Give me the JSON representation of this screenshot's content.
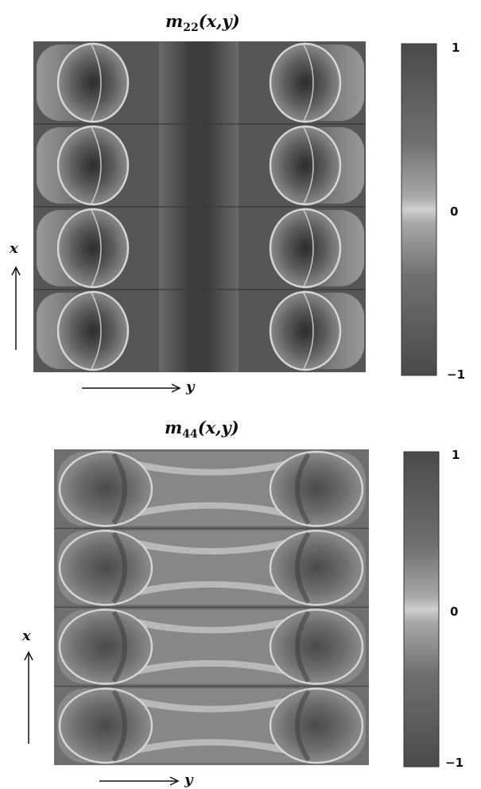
{
  "chart_data": [
    {
      "type": "heatmap",
      "title": {
        "main": "m",
        "sub": "22",
        "args": "(x,y)"
      },
      "xlabel": "y",
      "ylabel": "x",
      "colorbar": {
        "range": [
          -1,
          1
        ],
        "ticks": [
          {
            "value": 1,
            "label": "1"
          },
          {
            "value": 0,
            "label": "0"
          },
          {
            "value": -1,
            "label": "−1"
          }
        ]
      },
      "rows": 4,
      "columns": 2,
      "pattern": "circular-cells"
    },
    {
      "type": "heatmap",
      "title": {
        "main": "m",
        "sub": "44",
        "args": "(x,y)"
      },
      "xlabel": "y",
      "ylabel": "x",
      "colorbar": {
        "range": [
          -1,
          1
        ],
        "ticks": [
          {
            "value": 1,
            "label": "1"
          },
          {
            "value": 0,
            "label": "0"
          },
          {
            "value": -1,
            "label": "−1"
          }
        ]
      },
      "rows": 4,
      "columns": 2,
      "pattern": "hourglass-cells"
    }
  ]
}
